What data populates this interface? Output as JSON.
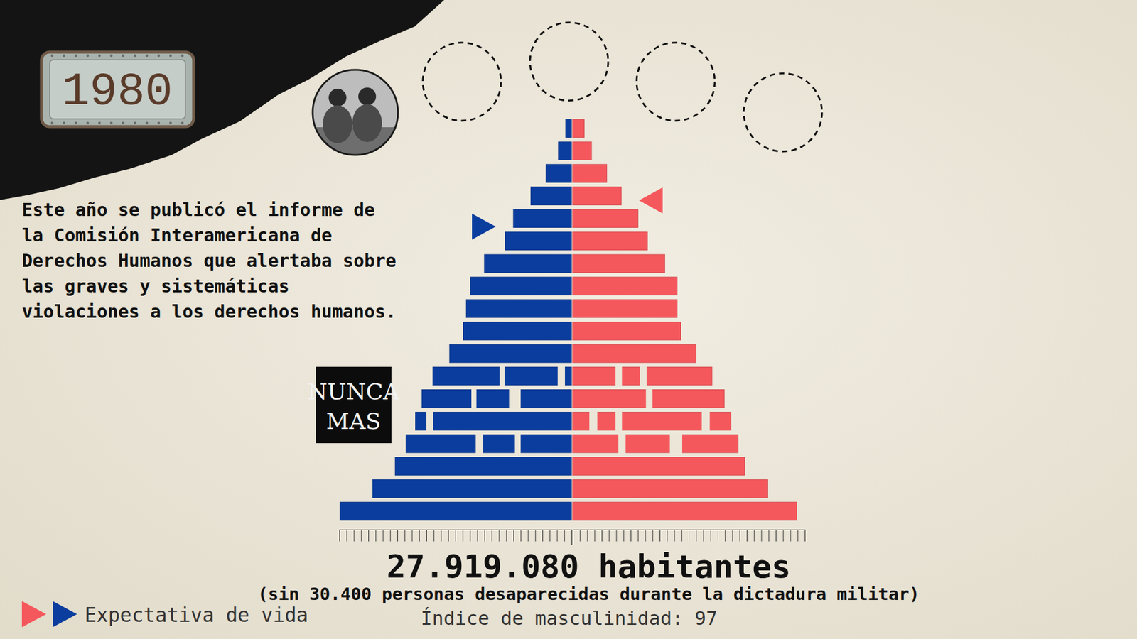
{
  "badge": "1980",
  "annotation": [
    "Este año se publicó el informe de",
    "la Comisión Interamericana de",
    "Derechos Humanos que alertaba sobre",
    "las graves y sistemáticas",
    "violaciones a los derechos humanos."
  ],
  "logo": [
    "NUNCA",
    "MAS"
  ],
  "chart_data": {
    "type": "bar",
    "orientation": "horizontal",
    "title": "27.919.080 habitantes",
    "subtitle": "(sin 30.400 personas desaparecidas durante la dictadura militar)",
    "caption": "Índice de masculinidad: 97",
    "categories": [
      null,
      null,
      null,
      null,
      null,
      null,
      null,
      null,
      null,
      null,
      null,
      null,
      null,
      null,
      null,
      null,
      null,
      null
    ],
    "series": [
      {
        "color": "#0b3d9e",
        "values": [
          6.38,
          5.48,
          4.86,
          4.56,
          4.3,
          4.12,
          3.82,
          3.36,
          2.98,
          2.9,
          2.78,
          2.4,
          1.82,
          1.6,
          1.12,
          0.7,
          0.36,
          0.16
        ],
        "life_expectancy": 65.7,
        "gaps": [
          {
            "row": 3,
            "from": 1.4,
            "to": 1.56
          },
          {
            "row": 3,
            "from": 2.44,
            "to": 2.64
          },
          {
            "row": 4,
            "from": 3.82,
            "to": 4
          },
          {
            "row": 5,
            "from": 1.4,
            "to": 1.72
          },
          {
            "row": 5,
            "from": 2.62,
            "to": 2.76
          },
          {
            "row": 6,
            "from": 0.18,
            "to": 0.38
          },
          {
            "row": 6,
            "from": 1.84,
            "to": 1.98
          }
        ]
      },
      {
        "color": "#f5585c",
        "values": [
          6.18,
          5.38,
          4.74,
          4.56,
          4.36,
          4.18,
          3.84,
          3.4,
          2.98,
          2.88,
          2.88,
          2.54,
          2.06,
          1.8,
          1.34,
          0.94,
          0.52,
          0.32
        ],
        "life_expectancy": 71.5,
        "gaps": [
          {
            "row": 3,
            "from": 1.26,
            "to": 1.46
          },
          {
            "row": 3,
            "from": 2.68,
            "to": 3.02
          },
          {
            "row": 4,
            "from": 0.46,
            "to": 0.68
          },
          {
            "row": 4,
            "from": 1.18,
            "to": 1.36
          },
          {
            "row": 4,
            "from": 3.56,
            "to": 3.78
          },
          {
            "row": 5,
            "from": 2.02,
            "to": 2.2
          },
          {
            "row": 6,
            "from": 1.18,
            "to": 1.36
          },
          {
            "row": 6,
            "from": 1.86,
            "to": 2.04
          }
        ]
      }
    ],
    "xlim": [
      0,
      6.4
    ],
    "xticks": [
      0,
      0.2,
      0.4,
      0.6,
      0.8,
      1,
      1.2,
      1.4,
      1.6,
      1.8,
      2,
      2.2,
      2.4,
      2.6,
      2.8,
      3,
      3.2,
      3.4,
      3.6,
      3.8,
      4,
      4.2,
      4.4,
      4.6,
      4.8,
      5,
      5.2,
      5.4,
      5.6,
      5.8,
      6,
      6.2,
      6.4
    ],
    "ylim": [
      0,
      90
    ],
    "tick_labels": false,
    "legend": "bottom-left",
    "legend_label": "Expectativa de vida"
  }
}
